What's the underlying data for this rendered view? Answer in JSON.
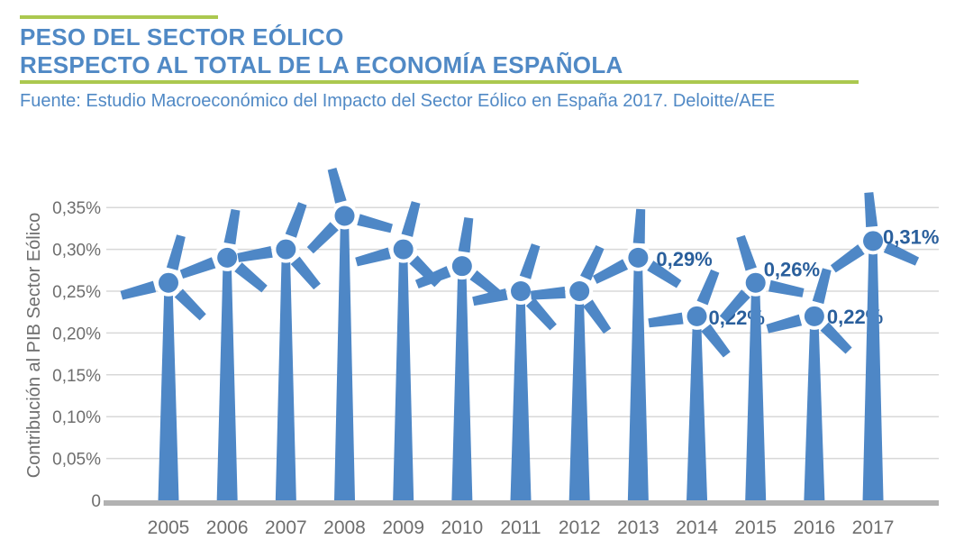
{
  "header": {
    "title_line1": "PESO DEL SECTOR EÓLICO",
    "title_line2": "RESPECTO AL TOTAL DE LA ECONOMÍA ESPAÑOLA",
    "source": "Fuente: Estudio Macroeconómico del Impacto del Sector Eólico en España 2017. Deloitte/AEE"
  },
  "colors": {
    "accent_green": "#ABC84F",
    "title_blue": "#5089C5",
    "turbine_blue": "#4E87C6",
    "value_label_blue": "#2A5F9C",
    "grid_gray": "#D8D8D8",
    "axis_gray": "#B2B2B2",
    "tick_gray": "#6E6E6E"
  },
  "chart_data": {
    "type": "bar",
    "variant": "wind-turbine-pictogram-bars",
    "title": "",
    "xlabel": "",
    "ylabel": "Contribución al PIB Sector Eólico",
    "unit": "%",
    "decimal_separator": ",",
    "grid": true,
    "legend": null,
    "ylim": [
      0,
      0.35
    ],
    "categories": [
      "2005",
      "2006",
      "2007",
      "2008",
      "2009",
      "2010",
      "2011",
      "2012",
      "2013",
      "2014",
      "2015",
      "2016",
      "2017"
    ],
    "values": [
      0.26,
      0.29,
      0.3,
      0.34,
      0.3,
      0.28,
      0.25,
      0.25,
      0.29,
      0.22,
      0.26,
      0.22,
      0.31
    ],
    "value_labels": [
      "",
      "",
      "",
      "",
      "",
      "",
      "",
      "",
      "0,29%",
      "0,22%",
      "0,26%",
      "0,22%",
      "0,31%"
    ],
    "yticks": [
      {
        "label": "0,35%",
        "value": 0.35
      },
      {
        "label": "0,30%",
        "value": 0.3
      },
      {
        "label": "0,25%",
        "value": 0.25
      },
      {
        "label": "0,20%",
        "value": 0.2
      },
      {
        "label": "0,15%",
        "value": 0.15
      },
      {
        "label": "0,10%",
        "value": 0.1
      },
      {
        "label": "0,05%",
        "value": 0.05
      },
      {
        "label": "0",
        "value": 0
      }
    ]
  }
}
